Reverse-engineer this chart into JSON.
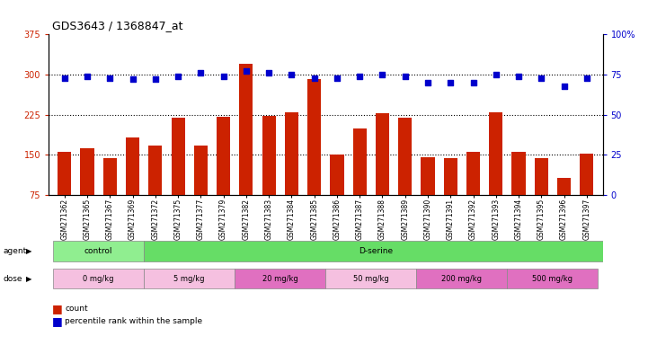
{
  "title": "GDS3643 / 1368847_at",
  "samples": [
    "GSM271362",
    "GSM271365",
    "GSM271367",
    "GSM271369",
    "GSM271372",
    "GSM271375",
    "GSM271377",
    "GSM271379",
    "GSM271382",
    "GSM271383",
    "GSM271384",
    "GSM271385",
    "GSM271386",
    "GSM271387",
    "GSM271388",
    "GSM271389",
    "GSM271390",
    "GSM271391",
    "GSM271392",
    "GSM271393",
    "GSM271394",
    "GSM271395",
    "GSM271396",
    "GSM271397"
  ],
  "counts": [
    155,
    162,
    143,
    182,
    167,
    220,
    168,
    221,
    320,
    222,
    230,
    292,
    150,
    200,
    228,
    220,
    145,
    144,
    155,
    230,
    155,
    143,
    107,
    152
  ],
  "percentiles": [
    73,
    74,
    73,
    72,
    72,
    74,
    76,
    74,
    77,
    76,
    75,
    73,
    73,
    74,
    75,
    74,
    70,
    70,
    70,
    75,
    74,
    73,
    68,
    73
  ],
  "ylim_left": [
    75,
    375
  ],
  "ylim_right": [
    0,
    100
  ],
  "yticks_left": [
    75,
    150,
    225,
    300,
    375
  ],
  "yticks_right": [
    0,
    25,
    50,
    75,
    100
  ],
  "bar_color": "#CC2200",
  "dot_color": "#0000CC",
  "hlines": [
    150,
    225,
    300
  ],
  "agent_groups": [
    {
      "label": "control",
      "start": 0,
      "end": 4,
      "color": "#90EE90"
    },
    {
      "label": "D-serine",
      "start": 4,
      "end": 24,
      "color": "#66DD66"
    }
  ],
  "dose_groups": [
    {
      "label": "0 mg/kg",
      "start": 0,
      "end": 4,
      "color": "#f5c0e0"
    },
    {
      "label": "5 mg/kg",
      "start": 4,
      "end": 8,
      "color": "#f5c0e0"
    },
    {
      "label": "20 mg/kg",
      "start": 8,
      "end": 12,
      "color": "#e070c0"
    },
    {
      "label": "50 mg/kg",
      "start": 12,
      "end": 16,
      "color": "#f5c0e0"
    },
    {
      "label": "200 mg/kg",
      "start": 16,
      "end": 20,
      "color": "#e070c0"
    },
    {
      "label": "500 mg/kg",
      "start": 20,
      "end": 24,
      "color": "#e070c0"
    }
  ]
}
